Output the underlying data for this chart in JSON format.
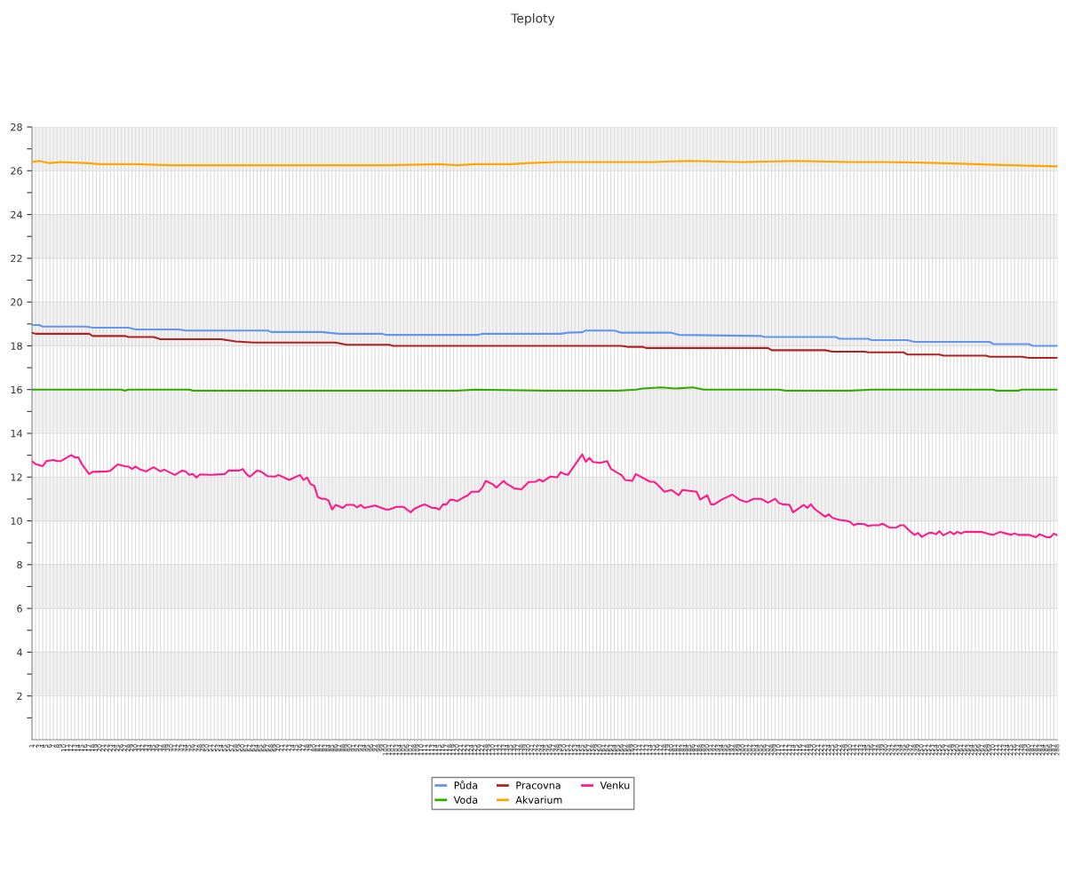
{
  "chart_data": {
    "type": "line",
    "title": "Teploty",
    "xlim": [
      1,
      288
    ],
    "xticks": [
      1,
      2,
      3,
      4,
      5,
      6,
      7,
      8,
      9,
      10,
      11,
      12,
      13,
      14,
      15,
      16,
      17,
      18,
      19,
      20,
      21,
      22,
      23,
      24,
      25,
      26,
      27,
      28,
      29,
      30,
      31,
      32,
      33,
      34,
      35,
      36,
      37,
      38,
      39,
      40,
      41,
      42,
      43,
      44,
      45,
      46,
      47,
      48,
      49,
      50,
      51,
      52,
      53,
      54,
      55,
      56,
      57,
      58,
      59,
      60,
      61,
      62,
      63,
      64,
      65,
      66,
      67,
      68,
      69,
      70,
      71,
      72,
      73,
      74,
      75,
      76,
      77,
      78,
      79,
      80,
      81,
      82,
      83,
      84,
      85,
      86,
      87,
      88,
      89,
      90,
      91,
      92,
      93,
      94,
      95,
      96,
      97,
      98,
      99,
      100,
      101,
      102,
      103,
      104,
      105,
      106,
      107,
      108,
      109,
      110,
      111,
      112,
      113,
      114,
      115,
      116,
      117,
      118,
      119,
      120,
      121,
      122,
      123,
      124,
      125,
      126,
      127,
      128,
      129,
      130,
      131,
      132,
      133,
      134,
      135,
      136,
      137,
      138,
      139,
      140,
      141,
      142,
      143,
      144,
      145,
      146,
      147,
      148,
      149,
      150,
      151,
      152,
      153,
      154,
      155,
      156,
      157,
      158,
      159,
      160,
      161,
      162,
      163,
      164,
      165,
      166,
      167,
      168,
      169,
      170,
      171,
      172,
      173,
      174,
      175,
      176,
      177,
      178,
      179,
      180,
      181,
      182,
      183,
      184,
      185,
      186,
      187,
      188,
      189,
      190,
      191,
      192,
      193,
      194,
      195,
      196,
      197,
      198,
      199,
      200,
      201,
      202,
      203,
      204,
      205,
      206,
      207,
      208,
      209,
      210,
      211,
      212,
      213,
      214,
      215,
      216,
      217,
      218,
      219,
      220,
      221,
      222,
      223,
      224,
      225,
      226,
      227,
      228,
      229,
      230,
      231,
      232,
      233,
      234,
      235,
      236,
      237,
      238,
      239,
      240,
      241,
      242,
      243,
      244,
      245,
      246,
      247,
      248,
      249,
      250,
      251,
      252,
      253,
      254,
      255,
      256,
      257,
      258,
      259,
      260,
      261,
      262,
      263,
      264,
      265,
      266,
      267,
      268,
      269,
      270,
      271,
      272,
      273,
      274,
      275,
      276,
      277,
      278,
      279,
      280,
      281,
      282,
      283,
      284,
      285,
      286,
      287,
      288
    ],
    "ylim": [
      0,
      28
    ],
    "yticks": [
      {
        "value": 1,
        "label": null
      },
      2,
      {
        "value": 3,
        "label": null
      },
      4,
      {
        "value": 5,
        "label": null
      },
      6,
      {
        "value": 7,
        "label": null
      },
      8,
      {
        "value": 9,
        "label": null
      },
      10,
      {
        "value": 11,
        "label": null
      },
      12,
      {
        "value": 13,
        "label": null
      },
      14,
      {
        "value": 15,
        "label": null
      },
      16,
      {
        "value": 17,
        "label": null
      },
      18,
      {
        "value": 19,
        "label": null
      },
      20,
      {
        "value": 21,
        "label": null
      },
      22,
      {
        "value": 23,
        "label": null
      },
      24,
      {
        "value": 25,
        "label": null
      },
      26,
      {
        "value": 27,
        "label": null
      },
      28
    ],
    "grid": true,
    "legend": "bottom",
    "marker": "none",
    "line_style": "solid",
    "bands": [
      {
        "axis": "y",
        "from": 2,
        "to": 4,
        "color": "#f2f2f2"
      },
      {
        "axis": "y",
        "from": 6,
        "to": 8,
        "color": "#f2f2f2"
      },
      {
        "axis": "y",
        "from": 10,
        "to": 12,
        "color": "#f2f2f2"
      },
      {
        "axis": "y",
        "from": 14,
        "to": 16,
        "color": "#f2f2f2"
      },
      {
        "axis": "y",
        "from": 18,
        "to": 20,
        "color": "#f2f2f2"
      },
      {
        "axis": "y",
        "from": 22,
        "to": 24,
        "color": "#f2f2f2"
      },
      {
        "axis": "y",
        "from": 26,
        "to": 28,
        "color": "#f2f2f2"
      }
    ],
    "series": [
      {
        "name": "Půda",
        "color": "#6495ed",
        "x": [
          1,
          3,
          4,
          16,
          18,
          28,
          30,
          42,
          44,
          67,
          68,
          82,
          87,
          99,
          100,
          126,
          127,
          149,
          151,
          155,
          156,
          164,
          166,
          180,
          182,
          205,
          206,
          226,
          227,
          235,
          236,
          246,
          248,
          269,
          270,
          280,
          281,
          288
        ],
        "values": [
          18.95,
          18.95,
          18.88,
          18.88,
          18.83,
          18.83,
          18.75,
          18.75,
          18.7,
          18.7,
          18.63,
          18.63,
          18.55,
          18.55,
          18.5,
          18.5,
          18.55,
          18.55,
          18.6,
          18.62,
          18.7,
          18.7,
          18.6,
          18.6,
          18.5,
          18.45,
          18.4,
          18.4,
          18.32,
          18.32,
          18.26,
          18.26,
          18.18,
          18.18,
          18.08,
          18.08,
          18.0,
          18.0
        ]
      },
      {
        "name": "Voda",
        "color": "#33aa00",
        "x": [
          1,
          26,
          27,
          28,
          45,
          46,
          60,
          120,
          125,
          145,
          165,
          170,
          172,
          177,
          181,
          186,
          189,
          210,
          212,
          230,
          236,
          270,
          271,
          277,
          278,
          288
        ],
        "values": [
          16.0,
          16.0,
          15.95,
          16.0,
          16.0,
          15.95,
          15.95,
          15.95,
          16.0,
          15.95,
          15.95,
          16.0,
          16.05,
          16.1,
          16.05,
          16.1,
          16.0,
          16.0,
          15.95,
          15.95,
          16.0,
          16.0,
          15.95,
          15.95,
          16.0,
          16.0
        ]
      },
      {
        "name": "Pracovna",
        "color": "#b22222",
        "x": [
          1,
          2,
          17,
          18,
          27,
          28,
          35,
          37,
          54,
          58,
          63,
          86,
          89,
          101,
          102,
          166,
          168,
          172,
          173,
          207,
          208,
          223,
          225,
          234,
          235,
          245,
          246,
          255,
          256,
          268,
          269,
          278,
          280,
          288
        ],
        "values": [
          18.6,
          18.55,
          18.55,
          18.45,
          18.45,
          18.4,
          18.4,
          18.3,
          18.3,
          18.2,
          18.15,
          18.15,
          18.05,
          18.05,
          18.0,
          18.0,
          17.95,
          17.95,
          17.9,
          17.9,
          17.8,
          17.8,
          17.73,
          17.73,
          17.7,
          17.7,
          17.6,
          17.6,
          17.55,
          17.55,
          17.5,
          17.5,
          17.45,
          17.45
        ]
      },
      {
        "name": "Akvarium",
        "color": "#ffa500",
        "x": [
          1,
          3,
          6,
          9,
          16,
          20,
          30,
          40,
          60,
          75,
          90,
          100,
          115,
          120,
          125,
          135,
          140,
          148,
          160,
          175,
          185,
          200,
          215,
          230,
          240,
          255,
          265,
          275,
          288
        ],
        "values": [
          26.4,
          26.45,
          26.35,
          26.4,
          26.35,
          26.3,
          26.3,
          26.25,
          26.25,
          26.25,
          26.25,
          26.25,
          26.3,
          26.25,
          26.3,
          26.3,
          26.35,
          26.4,
          26.4,
          26.4,
          26.45,
          26.4,
          26.45,
          26.4,
          26.4,
          26.35,
          26.3,
          26.25,
          26.2
        ]
      },
      {
        "name": "Venku",
        "color": "#ff1a8c",
        "x": [
          1,
          2,
          4,
          5,
          7,
          8,
          9,
          12,
          13,
          14,
          15,
          17,
          18,
          22,
          23,
          25,
          27,
          28,
          29,
          30,
          31,
          33,
          35,
          37,
          38,
          41,
          43,
          44,
          45,
          46,
          47,
          48,
          51,
          55,
          56,
          59,
          60,
          61,
          62,
          64,
          65,
          67,
          69,
          70,
          73,
          76,
          77,
          78,
          79,
          80,
          81,
          82,
          83,
          84,
          85,
          86,
          88,
          89,
          91,
          92,
          93,
          94,
          97,
          100,
          101,
          103,
          105,
          107,
          108,
          110,
          111,
          113,
          114,
          115,
          116,
          117,
          118,
          119,
          120,
          122,
          123,
          124,
          126,
          127,
          128,
          130,
          131,
          133,
          134,
          135,
          136,
          138,
          140,
          142,
          143,
          144,
          146,
          148,
          149,
          150,
          151,
          155,
          156,
          157,
          158,
          160,
          162,
          163,
          165,
          166,
          167,
          169,
          170,
          174,
          175,
          176,
          178,
          180,
          182,
          183,
          187,
          188,
          190,
          191,
          192,
          194,
          197,
          199,
          201,
          203,
          205,
          207,
          209,
          210,
          211,
          213,
          214,
          216,
          217,
          218,
          219,
          220,
          223,
          224,
          225,
          227,
          229,
          230,
          231,
          232,
          234,
          235,
          236,
          238,
          239,
          241,
          243,
          244,
          245,
          247,
          248,
          249,
          250,
          252,
          253,
          254,
          255,
          256,
          258,
          259,
          260,
          261,
          262,
          267,
          269,
          270,
          272,
          273,
          275,
          276,
          277,
          280,
          282,
          283,
          285,
          286,
          287,
          288
        ],
        "values": [
          12.73,
          12.6,
          12.5,
          12.73,
          12.78,
          12.73,
          12.73,
          13.01,
          12.9,
          12.9,
          12.58,
          12.14,
          12.24,
          12.26,
          12.3,
          12.58,
          12.5,
          12.48,
          12.37,
          12.48,
          12.37,
          12.26,
          12.45,
          12.26,
          12.34,
          12.1,
          12.3,
          12.26,
          12.1,
          12.14,
          11.98,
          12.12,
          12.1,
          12.14,
          12.3,
          12.3,
          12.37,
          12.14,
          12.02,
          12.3,
          12.26,
          12.04,
          12.02,
          12.1,
          11.87,
          12.1,
          11.87,
          11.98,
          11.68,
          11.6,
          11.09,
          11.01,
          11.01,
          10.93,
          10.52,
          10.73,
          10.59,
          10.73,
          10.73,
          10.62,
          10.73,
          10.59,
          10.7,
          10.52,
          10.52,
          10.64,
          10.64,
          10.39,
          10.55,
          10.7,
          10.75,
          10.59,
          10.59,
          10.52,
          10.75,
          10.75,
          10.96,
          10.96,
          10.9,
          11.09,
          11.17,
          11.33,
          11.33,
          11.51,
          11.83,
          11.67,
          11.52,
          11.83,
          11.67,
          11.59,
          11.48,
          11.44,
          11.78,
          11.79,
          11.89,
          11.8,
          12.02,
          11.99,
          12.23,
          12.14,
          12.1,
          13.04,
          12.7,
          12.88,
          12.69,
          12.65,
          12.73,
          12.38,
          12.18,
          12.1,
          11.87,
          11.83,
          12.14,
          11.79,
          11.79,
          11.67,
          11.33,
          11.41,
          11.17,
          11.41,
          11.33,
          10.97,
          11.17,
          10.76,
          10.76,
          10.97,
          11.2,
          10.97,
          10.86,
          11.01,
          11.01,
          10.83,
          11.01,
          10.82,
          10.76,
          10.73,
          10.39,
          10.62,
          10.73,
          10.59,
          10.76,
          10.55,
          10.19,
          10.3,
          10.14,
          10.04,
          10.0,
          9.95,
          9.8,
          9.87,
          9.85,
          9.76,
          9.8,
          9.8,
          9.87,
          9.69,
          9.7,
          9.8,
          9.8,
          9.49,
          9.36,
          9.45,
          9.27,
          9.45,
          9.45,
          9.39,
          9.53,
          9.34,
          9.5,
          9.39,
          9.5,
          9.42,
          9.5,
          9.49,
          9.39,
          9.36,
          9.5,
          9.45,
          9.36,
          9.43,
          9.36,
          9.36,
          9.25,
          9.39,
          9.25,
          9.25,
          9.42,
          9.34
        ]
      }
    ]
  }
}
